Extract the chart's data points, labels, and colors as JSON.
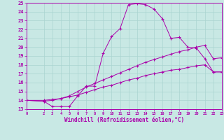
{
  "xlabel": "Windchill (Refroidissement éolien,°C)",
  "bg_color": "#c8e8e4",
  "grid_color": "#aad4d0",
  "line_color": "#aa00aa",
  "xlim": [
    0,
    23
  ],
  "ylim": [
    13,
    25
  ],
  "xticks": [
    0,
    2,
    3,
    4,
    5,
    6,
    7,
    8,
    9,
    10,
    11,
    12,
    13,
    14,
    15,
    16,
    17,
    18,
    19,
    20,
    21,
    22,
    23
  ],
  "yticks": [
    13,
    14,
    15,
    16,
    17,
    18,
    19,
    20,
    21,
    22,
    23,
    24,
    25
  ],
  "line1_x": [
    0,
    2,
    3,
    4,
    5,
    6,
    7,
    8,
    9,
    10,
    11,
    12,
    13,
    14,
    15,
    16,
    17,
    18,
    19,
    20,
    21,
    22,
    23
  ],
  "line1_y": [
    14.0,
    13.9,
    13.3,
    13.3,
    13.3,
    14.5,
    15.6,
    15.6,
    19.3,
    21.2,
    22.1,
    24.8,
    24.9,
    24.8,
    24.3,
    23.2,
    21.0,
    21.1,
    20.0,
    19.9,
    18.7,
    17.2,
    17.2
  ],
  "line2_x": [
    0,
    2,
    3,
    4,
    5,
    6,
    7,
    8,
    9,
    10,
    11,
    12,
    13,
    14,
    15,
    16,
    17,
    18,
    19,
    20,
    21,
    22,
    23
  ],
  "line2_y": [
    14.0,
    13.9,
    14.0,
    14.2,
    14.5,
    15.0,
    15.5,
    15.9,
    16.3,
    16.7,
    17.1,
    17.5,
    17.9,
    18.3,
    18.6,
    18.9,
    19.2,
    19.5,
    19.7,
    20.0,
    20.2,
    18.7,
    18.8
  ],
  "line3_x": [
    0,
    2,
    3,
    4,
    5,
    6,
    7,
    8,
    9,
    10,
    11,
    12,
    13,
    14,
    15,
    16,
    17,
    18,
    19,
    20,
    21,
    22,
    23
  ],
  "line3_y": [
    14.0,
    14.0,
    14.1,
    14.2,
    14.4,
    14.6,
    14.9,
    15.2,
    15.5,
    15.7,
    16.0,
    16.3,
    16.5,
    16.8,
    17.0,
    17.2,
    17.4,
    17.5,
    17.7,
    17.9,
    18.0,
    17.2,
    17.2
  ]
}
